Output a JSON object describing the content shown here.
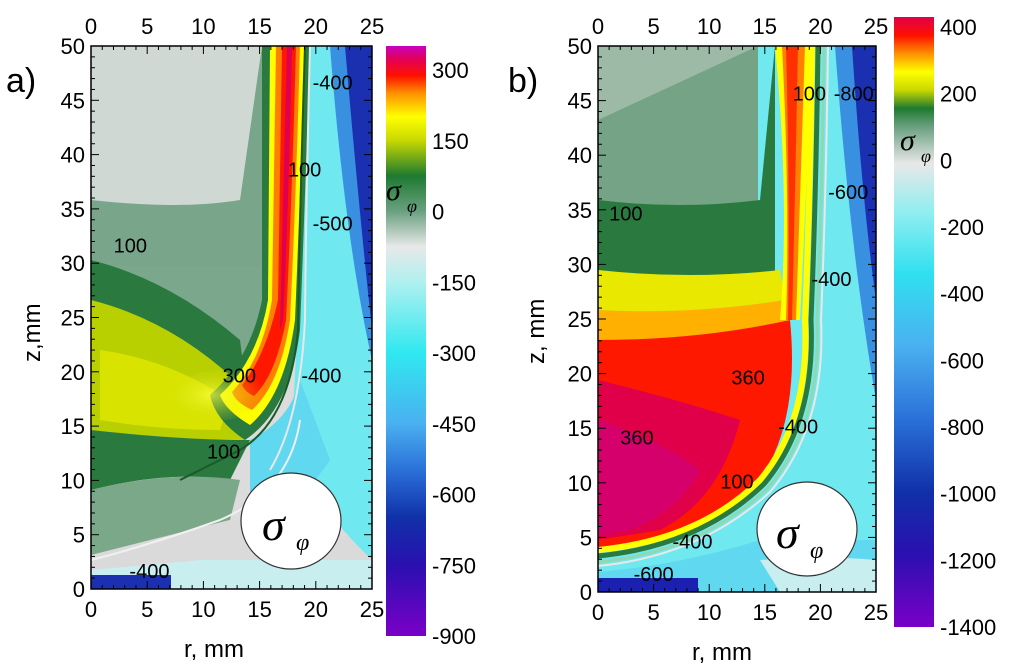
{
  "colors": {
    "colormap": [
      "#7a00c8",
      "#3a10b8",
      "#1020a0",
      "#1a50c8",
      "#3a90e8",
      "#50c8f0",
      "#30e8f0",
      "#90f0f0",
      "#e6e6e6",
      "#5a9a78",
      "#2a7a48",
      "#1e7a30",
      "#c8d800",
      "#ffff00",
      "#ffb000",
      "#ff5000",
      "#ff1000",
      "#e0004a",
      "#c800c0"
    ]
  },
  "chart_data": [
    {
      "type": "heatmap",
      "panel_label": "a)",
      "xlabel": "r, mm",
      "ylabel": "z,mm",
      "xlim": [
        0,
        25
      ],
      "ylim": [
        0,
        50
      ],
      "x_ticks": [
        "0",
        "5",
        "10",
        "15",
        "20",
        "25"
      ],
      "y_ticks": [
        "0",
        "5",
        "10",
        "15",
        "20",
        "25",
        "30",
        "35",
        "40",
        "45",
        "50"
      ],
      "colorbar": {
        "label": "σφ",
        "range": [
          -900,
          390
        ],
        "ticks": [
          "300",
          "150",
          "0",
          "-150",
          "-300",
          "-450",
          "-600",
          "-750",
          "-900"
        ]
      },
      "contour_labels": [
        {
          "text": "100",
          "r": 3.5,
          "z": 31
        },
        {
          "text": "100",
          "r": 19,
          "z": 38
        },
        {
          "text": "100",
          "r": 11.8,
          "z": 12
        },
        {
          "text": "300",
          "r": 13.2,
          "z": 19
        },
        {
          "text": "-400",
          "r": 21.5,
          "z": 46
        },
        {
          "text": "-500",
          "r": 21.5,
          "z": 33
        },
        {
          "text": "-400",
          "r": 20.5,
          "z": 19
        },
        {
          "text": "-400",
          "r": 5.2,
          "z": 1
        }
      ],
      "inset_symbol": {
        "main": "σ",
        "sub": "φ"
      }
    },
    {
      "type": "heatmap",
      "panel_label": "b)",
      "xlabel": "r, mm",
      "ylabel": "z, mm",
      "xlim": [
        0,
        25
      ],
      "ylim": [
        0,
        50
      ],
      "x_ticks": [
        "0",
        "5",
        "10",
        "15",
        "20",
        "25"
      ],
      "y_ticks": [
        "0",
        "5",
        "10",
        "15",
        "20",
        "25",
        "30",
        "35",
        "40",
        "45",
        "50"
      ],
      "colorbar": {
        "label": "σφ",
        "range": [
          -1400,
          400
        ],
        "ticks": [
          "400",
          "200",
          "0",
          "-200",
          "-400",
          "-600",
          "-800",
          "-1000",
          "-1200",
          "-1400"
        ]
      },
      "contour_labels": [
        {
          "text": "100",
          "r": 2.5,
          "z": 34
        },
        {
          "text": "100",
          "r": 19,
          "z": 45
        },
        {
          "text": "-800",
          "r": 23,
          "z": 45
        },
        {
          "text": "-600",
          "r": 22.5,
          "z": 36
        },
        {
          "text": "-400",
          "r": 21,
          "z": 28
        },
        {
          "text": "360",
          "r": 13.5,
          "z": 19
        },
        {
          "text": "360",
          "r": 3.5,
          "z": 13.5
        },
        {
          "text": "-400",
          "r": 18,
          "z": 14.5
        },
        {
          "text": "100",
          "r": 12.5,
          "z": 9.5
        },
        {
          "text": "-400",
          "r": 8.5,
          "z": 4
        },
        {
          "text": "-600",
          "r": 5,
          "z": 1
        }
      ],
      "inset_symbol": {
        "main": "σ",
        "sub": "φ"
      }
    }
  ]
}
